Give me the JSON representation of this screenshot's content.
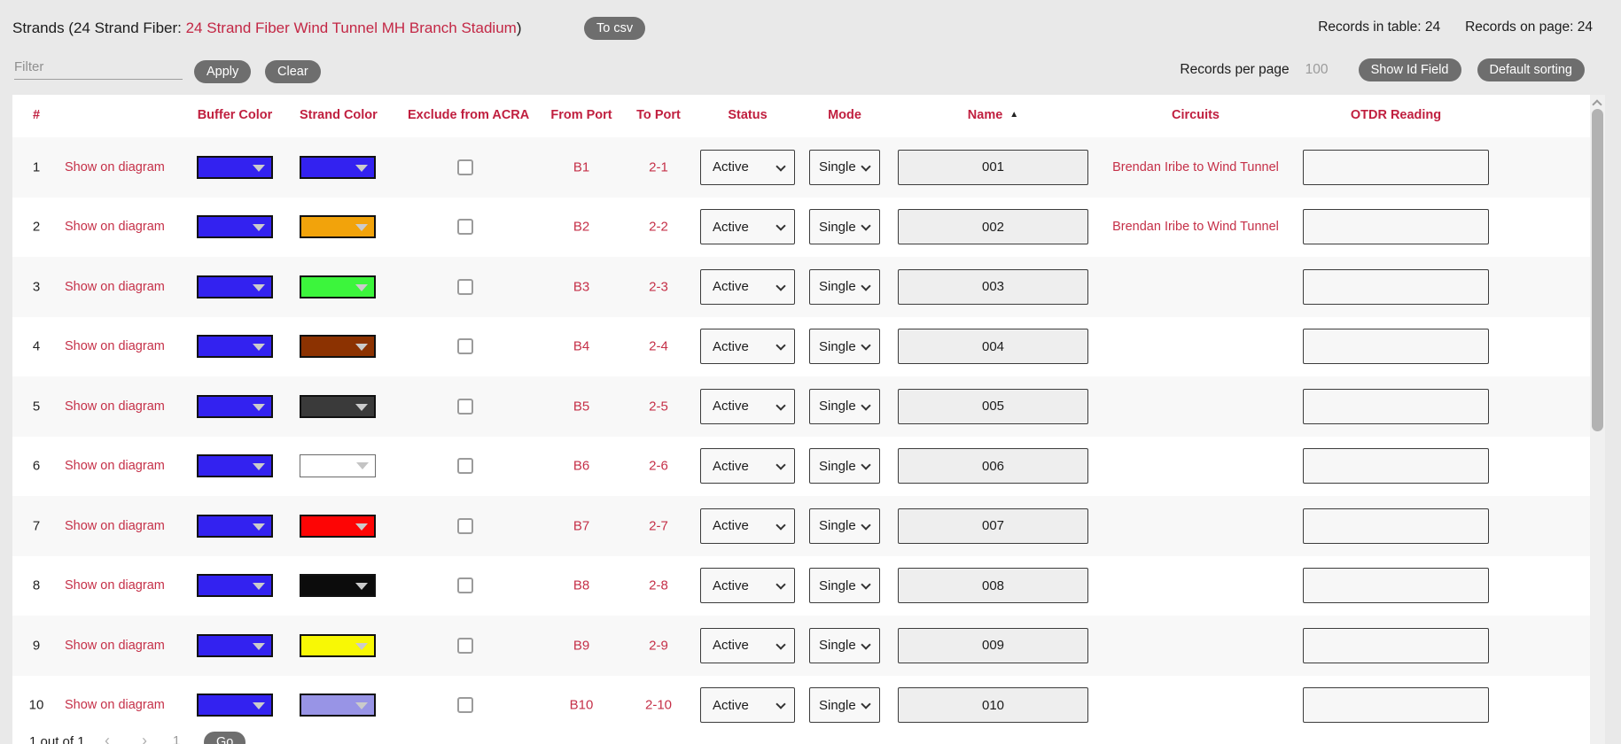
{
  "header": {
    "title_prefix": "Strands (24 Strand Fiber: ",
    "title_link": "24 Strand Fiber Wind Tunnel MH Branch Stadium",
    "title_suffix": ")",
    "to_csv": "To csv",
    "records_in_table": "Records in table: 24",
    "records_on_page": "Records on page: 24"
  },
  "filter_bar": {
    "filter_placeholder": "Filter",
    "apply": "Apply",
    "clear": "Clear",
    "records_per_page_label": "Records per page",
    "records_per_page_value": "100",
    "show_id_field": "Show Id Field",
    "default_sorting": "Default sorting"
  },
  "table": {
    "columns": [
      "#",
      "Buffer Color",
      "Strand Color",
      "Exclude from ACRA",
      "From Port",
      "To Port",
      "Status",
      "Mode",
      "Name",
      "Circuits",
      "OTDR Reading"
    ],
    "sort_column": "Name",
    "sort_direction": "ascending",
    "sort_indicator": "▲",
    "show_on_diagram_label": "Show on diagram",
    "rows": [
      {
        "idx": "1",
        "buffer_color": "#3322f0",
        "strand_color": "#3322f0",
        "excluded": false,
        "from_port": "B1",
        "to_port": "2-1",
        "status": "Active",
        "mode": "Single",
        "name": "001",
        "circuit": "Brendan Iribe to Wind Tunnel",
        "otdr": ""
      },
      {
        "idx": "2",
        "buffer_color": "#3322f0",
        "strand_color": "#f2a30b",
        "excluded": false,
        "from_port": "B2",
        "to_port": "2-2",
        "status": "Active",
        "mode": "Single",
        "name": "002",
        "circuit": "Brendan Iribe to Wind Tunnel",
        "otdr": ""
      },
      {
        "idx": "3",
        "buffer_color": "#3322f0",
        "strand_color": "#3cf53c",
        "excluded": false,
        "from_port": "B3",
        "to_port": "2-3",
        "status": "Active",
        "mode": "Single",
        "name": "003",
        "circuit": "",
        "otdr": ""
      },
      {
        "idx": "4",
        "buffer_color": "#3322f0",
        "strand_color": "#8c3201",
        "excluded": false,
        "from_port": "B4",
        "to_port": "2-4",
        "status": "Active",
        "mode": "Single",
        "name": "004",
        "circuit": "",
        "otdr": ""
      },
      {
        "idx": "5",
        "buffer_color": "#3322f0",
        "strand_color": "#3a3a3a",
        "excluded": false,
        "from_port": "B5",
        "to_port": "2-5",
        "status": "Active",
        "mode": "Single",
        "name": "005",
        "circuit": "",
        "otdr": ""
      },
      {
        "idx": "6",
        "buffer_color": "#3322f0",
        "strand_color": "#ffffff",
        "excluded": false,
        "from_port": "B6",
        "to_port": "2-6",
        "status": "Active",
        "mode": "Single",
        "name": "006",
        "circuit": "",
        "otdr": ""
      },
      {
        "idx": "7",
        "buffer_color": "#3322f0",
        "strand_color": "#fd0505",
        "excluded": false,
        "from_port": "B7",
        "to_port": "2-7",
        "status": "Active",
        "mode": "Single",
        "name": "007",
        "circuit": "",
        "otdr": ""
      },
      {
        "idx": "8",
        "buffer_color": "#3322f0",
        "strand_color": "#0c0c0c",
        "excluded": false,
        "from_port": "B8",
        "to_port": "2-8",
        "status": "Active",
        "mode": "Single",
        "name": "008",
        "circuit": "",
        "otdr": ""
      },
      {
        "idx": "9",
        "buffer_color": "#3322f0",
        "strand_color": "#f8f805",
        "excluded": false,
        "from_port": "B9",
        "to_port": "2-9",
        "status": "Active",
        "mode": "Single",
        "name": "009",
        "circuit": "",
        "otdr": ""
      },
      {
        "idx": "10",
        "buffer_color": "#3322f0",
        "strand_color": "#9894e6",
        "excluded": false,
        "from_port": "B10",
        "to_port": "2-10",
        "status": "Active",
        "mode": "Single",
        "name": "010",
        "circuit": "",
        "otdr": ""
      }
    ]
  },
  "pagination": {
    "page_info": "1 out of 1",
    "prev_arrow": "‹",
    "next_arrow": "›",
    "page_value": "1",
    "go": "Go"
  },
  "colors": {
    "accent_red": "#c32745",
    "header_red": "#c01f3f",
    "buffer_blue": "#3322f0",
    "button_gray": "#6e6e6e",
    "page_background": "#e9e9e9",
    "row_alt_background": "#f8f8f8"
  }
}
